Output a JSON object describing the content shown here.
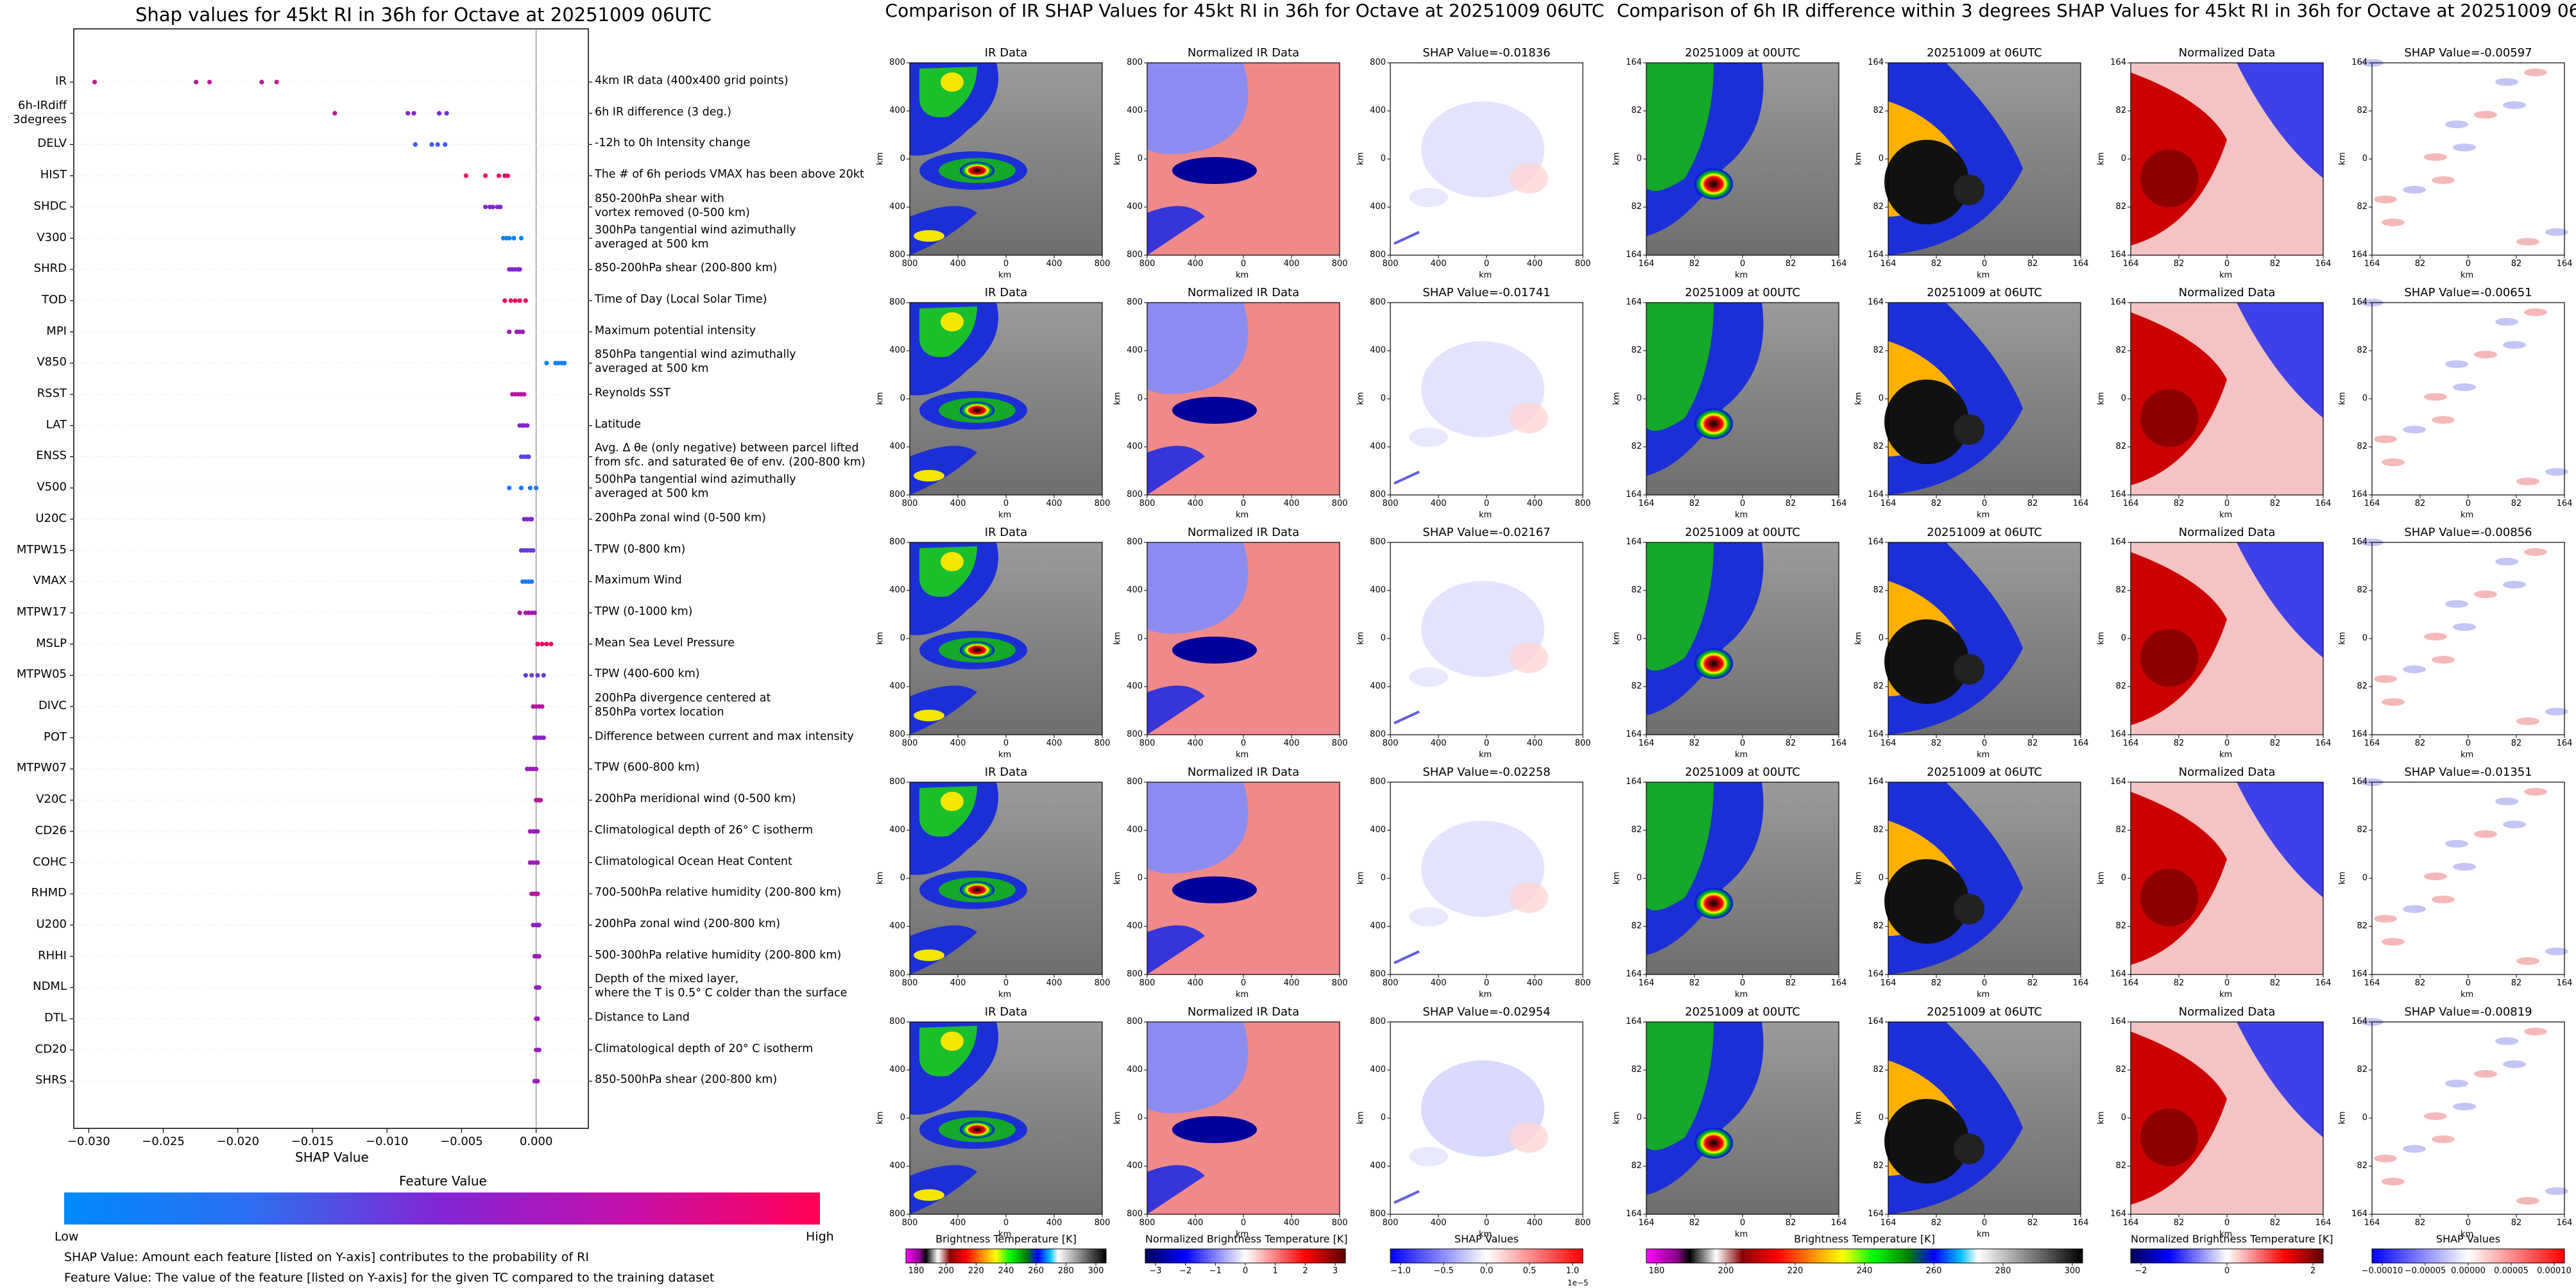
{
  "left": {
    "title": "Shap values for 45kt RI in 36h for Octave at 20251009 06UTC",
    "xlabel": "SHAP Value",
    "colorbar_title": "Feature Value",
    "colorbar_low": "Low",
    "colorbar_high": "High",
    "footnote1": "SHAP Value: Amount each feature [listed on Y-axis] contributes to the probability of RI",
    "footnote2": "Feature Value: The value of the feature [listed on Y-axis] for the given TC compared to the training dataset"
  },
  "middle": {
    "title": "Comparison of IR SHAP Values for 45kt RI in 36h for Octave at 20251009 06UTC",
    "col_titles": [
      "IR Data",
      "Normalized IR Data"
    ],
    "shap_titles": [
      "SHAP Value=-0.01836",
      "SHAP Value=-0.01741",
      "SHAP Value=-0.02167",
      "SHAP Value=-0.02258",
      "SHAP Value=-0.02954"
    ],
    "ticks": [
      "800",
      "400",
      "0",
      "400",
      "800"
    ],
    "axis_label": "km",
    "colorbars": [
      {
        "label": "Brightness Temperature [K]",
        "ticks": [
          "180",
          "200",
          "220",
          "240",
          "260",
          "280",
          "300"
        ]
      },
      {
        "label": "Normalized Brightness Temperature [K]",
        "ticks": [
          "−3",
          "−2",
          "−1",
          "0",
          "1",
          "2",
          "3"
        ]
      },
      {
        "label": "SHAP Values",
        "ticks": [
          "−1.0",
          "−0.5",
          "0.0",
          "0.5",
          "1.0"
        ],
        "offset": "1e−5"
      }
    ]
  },
  "right": {
    "title": "Comparison of 6h IR difference within 3 degrees SHAP Values for 45kt RI in 36h for Octave at 20251009 06UTC",
    "col_titles": [
      "20251009 at 00UTC",
      "20251009 at 06UTC",
      "Normalized Data"
    ],
    "shap_titles": [
      "SHAP Value=-0.00597",
      "SHAP Value=-0.00651",
      "SHAP Value=-0.00856",
      "SHAP Value=-0.01351",
      "SHAP Value=-0.00819"
    ],
    "ticks": [
      "164",
      "82",
      "0",
      "82",
      "164"
    ],
    "axis_label": "km",
    "colorbars": [
      {
        "label": "Brightness Temperature [K]",
        "ticks": [
          "180",
          "200",
          "220",
          "240",
          "260",
          "280",
          "300"
        ]
      },
      {
        "label": "Normalized Brightness Temperature [K]",
        "ticks": [
          "−2",
          "0",
          "2"
        ]
      },
      {
        "label": "SHAP Values",
        "ticks": [
          "−0.00010",
          "−0.00005",
          "0.00000",
          "0.00005",
          "0.00010"
        ]
      }
    ]
  },
  "colors": {
    "low": "#008bfb",
    "high": "#ff0052",
    "zero_line": "#999999"
  },
  "chart_data": {
    "type": "scatter",
    "title": "Shap values for 45kt RI in 36h for Octave at 20251009 06UTC",
    "xlabel": "SHAP Value",
    "xlim": [
      -0.031,
      0.0035
    ],
    "xticks": [
      -0.03,
      -0.025,
      -0.02,
      -0.015,
      -0.01,
      -0.005,
      0.0
    ],
    "xtick_labels": [
      "−0.030",
      "−0.025",
      "−0.020",
      "−0.015",
      "−0.010",
      "−0.005",
      "0.000"
    ],
    "features": [
      {
        "name": "IR",
        "desc": "4km IR data (400x400 grid points)",
        "points": [
          [
            -0.0296,
            0.75
          ],
          [
            -0.0228,
            0.7
          ],
          [
            -0.0219,
            0.75
          ],
          [
            -0.0184,
            0.7
          ],
          [
            -0.0174,
            0.75
          ]
        ]
      },
      {
        "name": "6h-IRdiff\n3degrees",
        "desc": "6h IR difference (3 deg.)",
        "points": [
          [
            -0.0135,
            0.7
          ],
          [
            -0.0086,
            0.55
          ],
          [
            -0.0082,
            0.5
          ],
          [
            -0.0065,
            0.5
          ],
          [
            -0.006,
            0.45
          ]
        ]
      },
      {
        "name": "DELV",
        "desc": "-12h to 0h Intensity change",
        "points": [
          [
            -0.0081,
            0.2
          ],
          [
            -0.007,
            0.25
          ],
          [
            -0.0066,
            0.25
          ],
          [
            -0.0061,
            0.25
          ]
        ]
      },
      {
        "name": "HIST",
        "desc": "The # of 6h periods VMAX has been above 20kt",
        "points": [
          [
            -0.0047,
            0.95
          ],
          [
            -0.0034,
            0.95
          ],
          [
            -0.0025,
            0.95
          ],
          [
            -0.0021,
            0.95
          ],
          [
            -0.0019,
            0.9
          ]
        ]
      },
      {
        "name": "SHDC",
        "desc": "850-200hPa shear with\nvortex removed (0-500 km)",
        "points": [
          [
            -0.0034,
            0.5
          ],
          [
            -0.0031,
            0.5
          ],
          [
            -0.0029,
            0.5
          ],
          [
            -0.0026,
            0.5
          ],
          [
            -0.0024,
            0.5
          ]
        ]
      },
      {
        "name": "V300",
        "desc": "300hPa tangential wind azimuthally\naveraged at 500 km",
        "points": [
          [
            -0.0022,
            0.05
          ],
          [
            -0.002,
            0.05
          ],
          [
            -0.0018,
            0.05
          ],
          [
            -0.0015,
            0.05
          ],
          [
            -0.001,
            0.05
          ]
        ]
      },
      {
        "name": "SHRD",
        "desc": "850-200hPa shear (200-800 km)",
        "points": [
          [
            -0.0018,
            0.5
          ],
          [
            -0.0016,
            0.5
          ],
          [
            -0.0014,
            0.5
          ],
          [
            -0.0012,
            0.5
          ],
          [
            -0.0011,
            0.5
          ]
        ]
      },
      {
        "name": "TOD",
        "desc": "Time of Day (Local Solar Time)",
        "points": [
          [
            -0.0021,
            0.95
          ],
          [
            -0.0017,
            0.95
          ],
          [
            -0.0014,
            0.95
          ],
          [
            -0.0011,
            0.95
          ],
          [
            -0.0007,
            0.95
          ]
        ]
      },
      {
        "name": "MPI",
        "desc": "Maximum potential intensity",
        "points": [
          [
            -0.0018,
            0.6
          ],
          [
            -0.0013,
            0.6
          ],
          [
            -0.0011,
            0.6
          ],
          [
            -0.0009,
            0.6
          ]
        ]
      },
      {
        "name": "V850",
        "desc": "850hPa tangential wind azimuthally\naveraged at 500 km",
        "points": [
          [
            0.0007,
            0.05
          ],
          [
            0.0013,
            0.05
          ],
          [
            0.0015,
            0.05
          ],
          [
            0.0017,
            0.05
          ],
          [
            0.0019,
            0.05
          ]
        ]
      },
      {
        "name": "RSST",
        "desc": "Reynolds SST",
        "points": [
          [
            -0.0016,
            0.7
          ],
          [
            -0.0014,
            0.7
          ],
          [
            -0.0012,
            0.7
          ],
          [
            -0.001,
            0.7
          ],
          [
            -0.0008,
            0.7
          ]
        ]
      },
      {
        "name": "LAT",
        "desc": "Latitude",
        "points": [
          [
            -0.0011,
            0.5
          ],
          [
            -0.0009,
            0.5
          ],
          [
            -0.0008,
            0.5
          ],
          [
            -0.0006,
            0.5
          ]
        ]
      },
      {
        "name": "ENSS",
        "desc": "Avg. Δ θe (only negative) between parcel lifted\nfrom sfc. and saturated θe of env. (200-800 km)",
        "points": [
          [
            -0.001,
            0.35
          ],
          [
            -0.0008,
            0.35
          ],
          [
            -0.0006,
            0.35
          ],
          [
            -0.0005,
            0.35
          ]
        ]
      },
      {
        "name": "V500",
        "desc": "500hPa tangential wind azimuthally\naveraged at 500 km",
        "points": [
          [
            -0.0018,
            0.1
          ],
          [
            -0.001,
            0.1
          ],
          [
            -0.0004,
            0.1
          ],
          [
            0.0,
            0.1
          ]
        ]
      },
      {
        "name": "U20C",
        "desc": "200hPa zonal wind (0-500 km)",
        "points": [
          [
            -0.0008,
            0.5
          ],
          [
            -0.0006,
            0.5
          ],
          [
            -0.0004,
            0.5
          ],
          [
            -0.0003,
            0.5
          ]
        ]
      },
      {
        "name": "MTPW15",
        "desc": "TPW (0-800 km)",
        "points": [
          [
            -0.001,
            0.4
          ],
          [
            -0.0008,
            0.4
          ],
          [
            -0.0006,
            0.4
          ],
          [
            -0.0004,
            0.4
          ],
          [
            -0.0002,
            0.4
          ]
        ]
      },
      {
        "name": "VMAX",
        "desc": "Maximum Wind",
        "points": [
          [
            -0.0009,
            0.1
          ],
          [
            -0.0007,
            0.1
          ],
          [
            -0.0005,
            0.1
          ],
          [
            -0.0003,
            0.1
          ]
        ]
      },
      {
        "name": "MTPW17",
        "desc": "TPW (0-1000 km)",
        "points": [
          [
            -0.0011,
            0.65
          ],
          [
            -0.0007,
            0.65
          ],
          [
            -0.0005,
            0.65
          ],
          [
            -0.0003,
            0.65
          ],
          [
            -0.0001,
            0.65
          ]
        ]
      },
      {
        "name": "MSLP",
        "desc": "Mean Sea Level Pressure",
        "points": [
          [
            0.0001,
            0.95
          ],
          [
            0.0004,
            0.95
          ],
          [
            0.0007,
            0.95
          ],
          [
            0.001,
            0.95
          ]
        ]
      },
      {
        "name": "MTPW05",
        "desc": "TPW (400-600 km)",
        "points": [
          [
            -0.0007,
            0.4
          ],
          [
            -0.0003,
            0.4
          ],
          [
            0.0001,
            0.4
          ],
          [
            0.0005,
            0.4
          ]
        ]
      },
      {
        "name": "DIVC",
        "desc": "200hPa divergence centered at\n850hPa vortex location",
        "points": [
          [
            -0.0002,
            0.7
          ],
          [
            0.0,
            0.7
          ],
          [
            0.0002,
            0.7
          ],
          [
            0.0004,
            0.7
          ]
        ]
      },
      {
        "name": "POT",
        "desc": "Difference between current and max intensity",
        "points": [
          [
            -0.0001,
            0.55
          ],
          [
            0.0001,
            0.55
          ],
          [
            0.0003,
            0.55
          ],
          [
            0.0005,
            0.55
          ]
        ]
      },
      {
        "name": "MTPW07",
        "desc": "TPW (600-800 km)",
        "points": [
          [
            -0.0006,
            0.6
          ],
          [
            -0.0004,
            0.6
          ],
          [
            -0.0002,
            0.6
          ],
          [
            0.0,
            0.6
          ]
        ]
      },
      {
        "name": "V20C",
        "desc": "200hPa meridional wind (0-500 km)",
        "points": [
          [
            0.0,
            0.7
          ],
          [
            0.0001,
            0.7
          ],
          [
            0.0002,
            0.7
          ],
          [
            0.0003,
            0.7
          ]
        ]
      },
      {
        "name": "CD26",
        "desc": "Climatological depth of 26° C isotherm",
        "points": [
          [
            -0.0004,
            0.6
          ],
          [
            -0.0002,
            0.6
          ],
          [
            -0.0001,
            0.6
          ],
          [
            0.0001,
            0.6
          ]
        ]
      },
      {
        "name": "COHC",
        "desc": "Climatological Ocean Heat Content",
        "points": [
          [
            -0.0004,
            0.6
          ],
          [
            -0.0002,
            0.6
          ],
          [
            0.0,
            0.6
          ],
          [
            0.0001,
            0.6
          ]
        ]
      },
      {
        "name": "RHMD",
        "desc": "700-500hPa relative humidity (200-800 km)",
        "points": [
          [
            -0.0003,
            0.7
          ],
          [
            -0.0001,
            0.7
          ],
          [
            0.0,
            0.7
          ],
          [
            0.0001,
            0.7
          ]
        ]
      },
      {
        "name": "U200",
        "desc": "200hPa zonal wind (200-800 km)",
        "points": [
          [
            -0.0002,
            0.55
          ],
          [
            0.0,
            0.55
          ],
          [
            0.0001,
            0.55
          ],
          [
            0.0002,
            0.55
          ]
        ]
      },
      {
        "name": "RHHI",
        "desc": "500-300hPa relative humidity (200-800 km)",
        "points": [
          [
            -0.0001,
            0.6
          ],
          [
            0.0,
            0.6
          ],
          [
            0.0001,
            0.6
          ],
          [
            0.0002,
            0.6
          ]
        ]
      },
      {
        "name": "NDML",
        "desc": "Depth of the mixed layer,\nwhere the T is 0.5° C colder than the surface",
        "points": [
          [
            0.0,
            0.6
          ],
          [
            0.0001,
            0.6
          ],
          [
            0.0002,
            0.6
          ]
        ]
      },
      {
        "name": "DTL",
        "desc": "Distance to Land",
        "points": [
          [
            0.0,
            0.6
          ],
          [
            0.0001,
            0.6
          ],
          [
            0.0001,
            0.6
          ]
        ]
      },
      {
        "name": "CD20",
        "desc": "Climatological depth of 20° C isotherm",
        "points": [
          [
            0.0,
            0.6
          ],
          [
            0.0001,
            0.6
          ],
          [
            0.0002,
            0.6
          ]
        ]
      },
      {
        "name": "SHRS",
        "desc": "850-500hPa shear (200-800 km)",
        "points": [
          [
            -0.0001,
            0.6
          ],
          [
            0.0,
            0.6
          ],
          [
            0.0001,
            0.6
          ]
        ]
      }
    ]
  }
}
